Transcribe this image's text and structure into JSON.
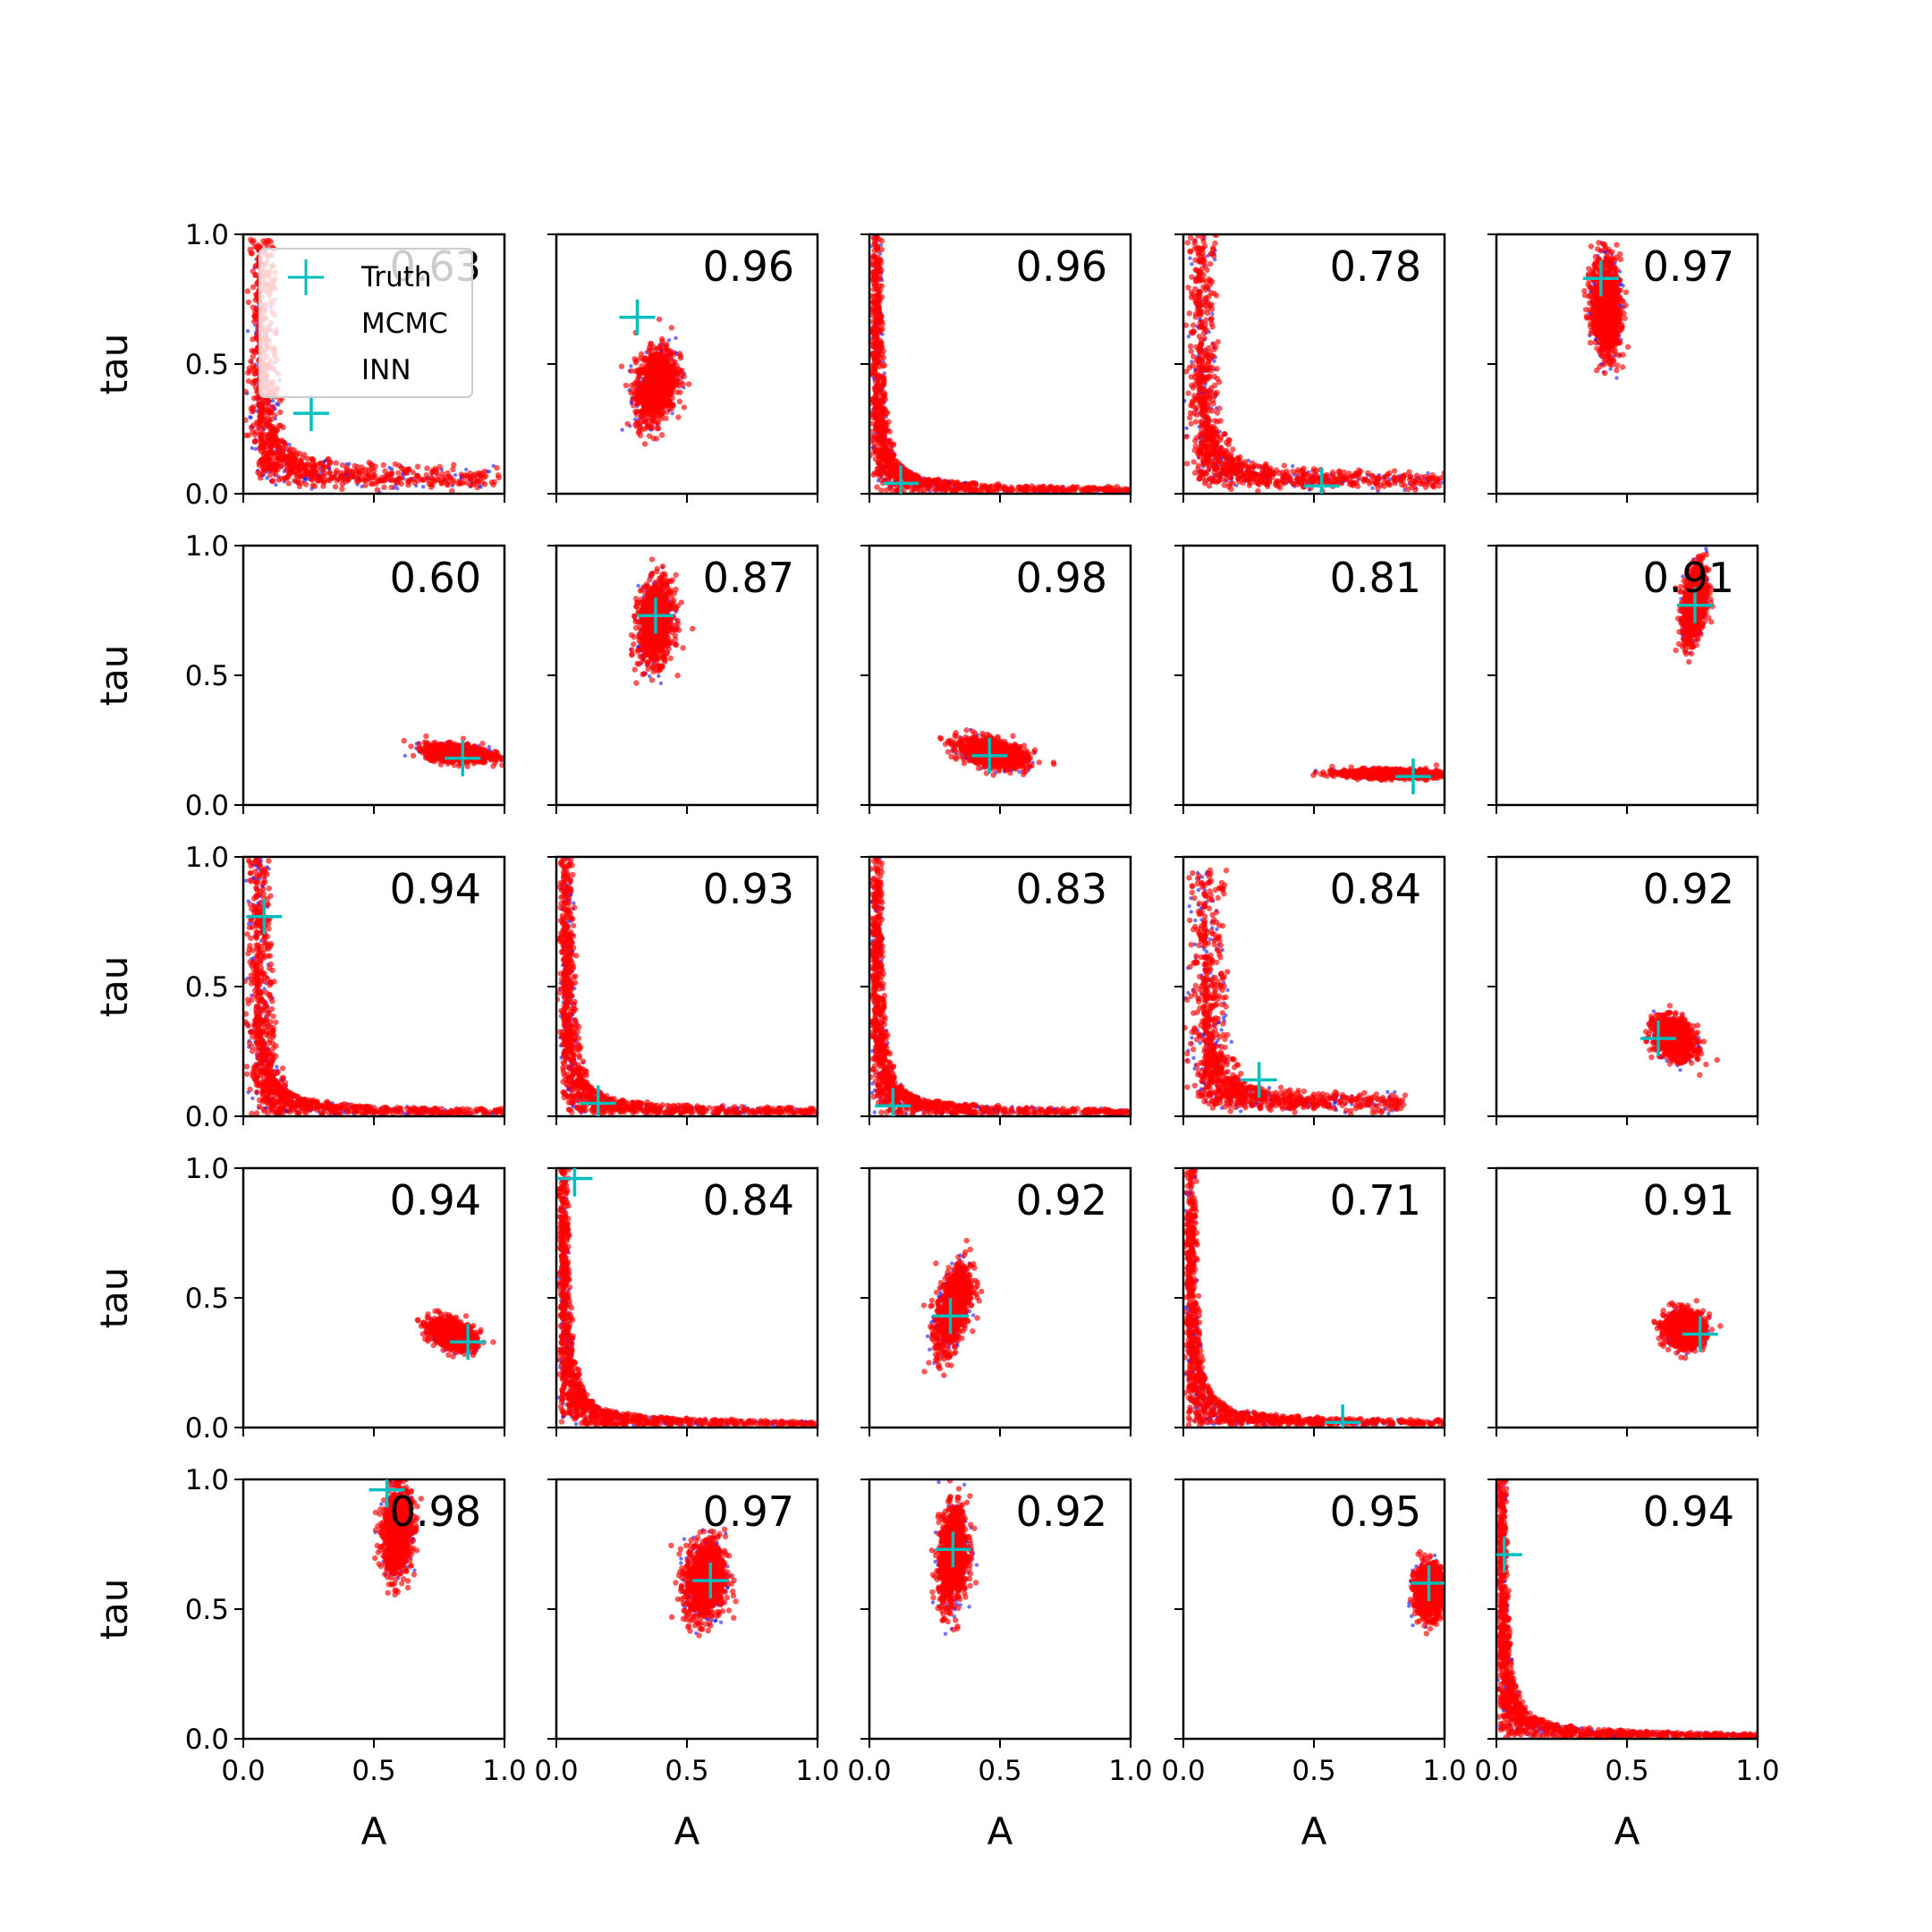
{
  "chart_data": {
    "type": "scatter",
    "grid": false,
    "xlabel": "A",
    "ylabel": "tau",
    "xlim": [
      0,
      1
    ],
    "ylim": [
      0,
      1
    ],
    "x_ticks": [
      "0.0",
      "0.5",
      "1.0"
    ],
    "y_ticks": [
      "0.0",
      "0.5",
      "1.0"
    ],
    "legend": {
      "placement": "upper-left of first panel",
      "entries": [
        "Truth",
        "MCMC",
        "INN"
      ]
    },
    "colors": {
      "mcmc": "#0000ff",
      "inn": "#ff0000",
      "truth": "#00bfbf"
    },
    "panels": [
      {
        "score": "0.63",
        "truth": [
          0.26,
          0.31
        ],
        "shape": "curve",
        "ca": 0.06,
        "ct": 0.05,
        "amax": 0.98,
        "tmax": 0.98
      },
      {
        "score": "0.96",
        "truth": [
          0.31,
          0.68
        ],
        "shape": "blob",
        "center": [
          0.38,
          0.42
        ],
        "spread": [
          0.07,
          0.13
        ],
        "tilt": 0.3
      },
      {
        "score": "0.96",
        "truth": [
          0.12,
          0.04
        ],
        "shape": "curve",
        "ca": 0.02,
        "ct": 0.008,
        "amax": 1.0,
        "tmax": 1.0
      },
      {
        "score": "0.78",
        "truth": [
          0.53,
          0.03
        ],
        "shape": "curve",
        "ca": 0.06,
        "ct": 0.04,
        "amax": 1.0,
        "tmax": 1.0
      },
      {
        "score": "0.97",
        "truth": [
          0.4,
          0.83
        ],
        "shape": "blob",
        "center": [
          0.42,
          0.72
        ],
        "spread": [
          0.05,
          0.17
        ],
        "tilt": -0.1
      },
      {
        "score": "0.60",
        "truth": [
          0.84,
          0.18
        ],
        "shape": "blob",
        "center": [
          0.82,
          0.2
        ],
        "spread": [
          0.11,
          0.03
        ],
        "tilt": -0.25
      },
      {
        "score": "0.87",
        "truth": [
          0.38,
          0.73
        ],
        "shape": "blob",
        "center": [
          0.38,
          0.7
        ],
        "spread": [
          0.06,
          0.14
        ],
        "tilt": 0.15
      },
      {
        "score": "0.98",
        "truth": [
          0.46,
          0.19
        ],
        "shape": "blob",
        "center": [
          0.47,
          0.2
        ],
        "spread": [
          0.12,
          0.05
        ],
        "tilt": -0.45
      },
      {
        "score": "0.81",
        "truth": [
          0.88,
          0.11
        ],
        "shape": "blob",
        "center": [
          0.79,
          0.12
        ],
        "spread": [
          0.17,
          0.015
        ],
        "tilt": -0.1
      },
      {
        "score": "0.91",
        "truth": [
          0.76,
          0.77
        ],
        "shape": "blob",
        "center": [
          0.76,
          0.78
        ],
        "spread": [
          0.04,
          0.13
        ],
        "tilt": 0.35
      },
      {
        "score": "0.94",
        "truth": [
          0.08,
          0.77
        ],
        "shape": "curve",
        "ca": 0.05,
        "ct": 0.01,
        "amax": 1.0,
        "tmax": 1.0
      },
      {
        "score": "0.93",
        "truth": [
          0.16,
          0.05
        ],
        "shape": "curve",
        "ca": 0.03,
        "ct": 0.012,
        "amax": 1.0,
        "tmax": 1.0
      },
      {
        "score": "0.83",
        "truth": [
          0.09,
          0.04
        ],
        "shape": "curve",
        "ca": 0.02,
        "ct": 0.01,
        "amax": 1.0,
        "tmax": 1.0
      },
      {
        "score": "0.84",
        "truth": [
          0.29,
          0.14
        ],
        "shape": "curve",
        "ca": 0.08,
        "ct": 0.04,
        "amax": 0.85,
        "tmax": 0.95
      },
      {
        "score": "0.92",
        "truth": [
          0.62,
          0.3
        ],
        "shape": "blob",
        "center": [
          0.68,
          0.3
        ],
        "spread": [
          0.07,
          0.07
        ],
        "tilt": -0.3
      },
      {
        "score": "0.94",
        "truth": [
          0.86,
          0.33
        ],
        "shape": "blob",
        "center": [
          0.8,
          0.36
        ],
        "spread": [
          0.08,
          0.05
        ],
        "tilt": -0.4
      },
      {
        "score": "0.84",
        "truth": [
          0.07,
          0.96
        ],
        "shape": "curve",
        "ca": 0.02,
        "ct": 0.008,
        "amax": 1.0,
        "tmax": 1.0
      },
      {
        "score": "0.92",
        "truth": [
          0.31,
          0.43
        ],
        "shape": "blob",
        "center": [
          0.32,
          0.46
        ],
        "spread": [
          0.06,
          0.15
        ],
        "tilt": 0.5
      },
      {
        "score": "0.71",
        "truth": [
          0.61,
          0.02
        ],
        "shape": "curve",
        "ca": 0.02,
        "ct": 0.01,
        "amax": 1.0,
        "tmax": 1.0
      },
      {
        "score": "0.91",
        "truth": [
          0.78,
          0.36
        ],
        "shape": "blob",
        "center": [
          0.72,
          0.38
        ],
        "spread": [
          0.07,
          0.06
        ],
        "tilt": 0
      },
      {
        "score": "0.98",
        "truth": [
          0.55,
          0.96
        ],
        "shape": "blob",
        "center": [
          0.59,
          0.8
        ],
        "spread": [
          0.05,
          0.15
        ],
        "tilt": 0.1
      },
      {
        "score": "0.97",
        "truth": [
          0.59,
          0.61
        ],
        "shape": "blob",
        "center": [
          0.57,
          0.61
        ],
        "spread": [
          0.07,
          0.14
        ],
        "tilt": 0.1
      },
      {
        "score": "0.92",
        "truth": [
          0.32,
          0.73
        ],
        "shape": "blob",
        "center": [
          0.32,
          0.7
        ],
        "spread": [
          0.05,
          0.17
        ],
        "tilt": 0.2
      },
      {
        "score": "0.95",
        "truth": [
          0.94,
          0.6
        ],
        "shape": "blob",
        "center": [
          0.94,
          0.57
        ],
        "spread": [
          0.05,
          0.09
        ],
        "tilt": 0
      },
      {
        "score": "0.94",
        "truth": [
          0.03,
          0.71
        ],
        "shape": "curve",
        "ca": 0.015,
        "ct": 0.006,
        "amax": 1.0,
        "tmax": 1.0
      }
    ]
  }
}
